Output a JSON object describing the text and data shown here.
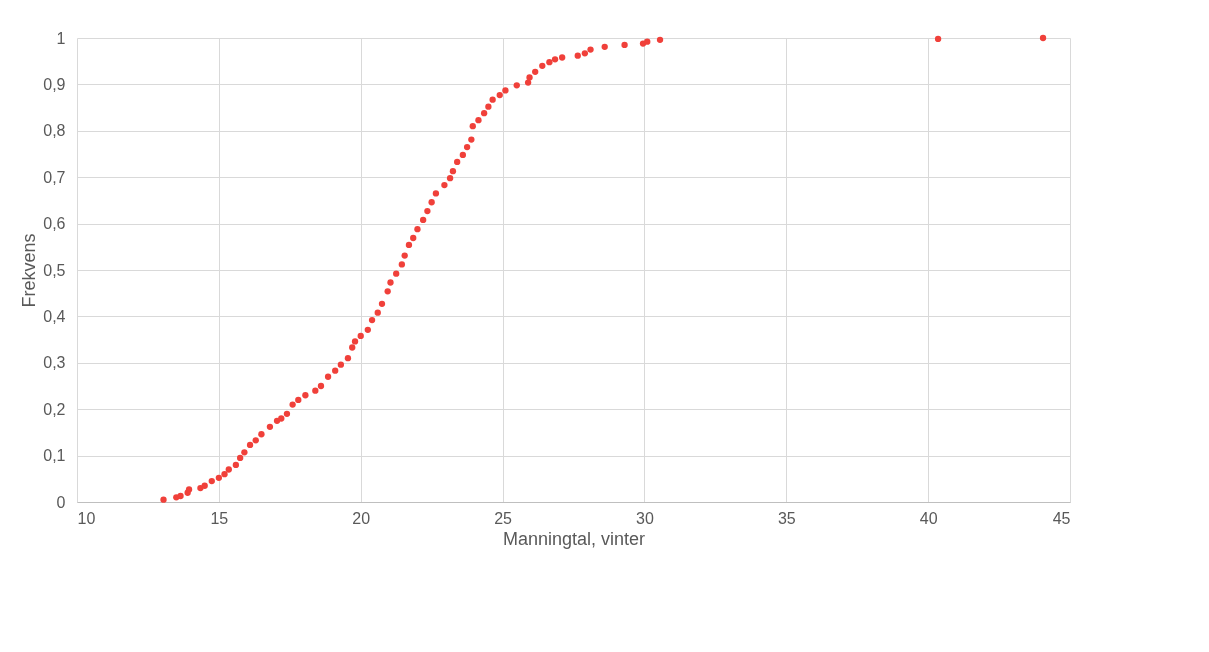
{
  "chart_data": {
    "type": "scatter",
    "xlabel": "Manningtal, vinter",
    "ylabel": "Frekvens",
    "x": [
      13.05,
      13.5,
      13.65,
      13.9,
      13.95,
      14.35,
      14.5,
      14.75,
      15.0,
      15.2,
      15.35,
      15.6,
      15.75,
      15.9,
      16.1,
      16.3,
      16.5,
      16.8,
      17.05,
      17.2,
      17.4,
      17.6,
      17.8,
      18.05,
      18.4,
      18.6,
      18.85,
      19.1,
      19.3,
      19.55,
      19.7,
      19.8,
      20.0,
      20.25,
      20.4,
      20.6,
      20.75,
      20.95,
      21.05,
      21.25,
      21.45,
      21.55,
      21.7,
      21.85,
      22.0,
      22.2,
      22.35,
      22.5,
      22.65,
      22.95,
      23.15,
      23.25,
      23.4,
      23.6,
      23.75,
      23.9,
      23.95,
      24.15,
      24.35,
      24.5,
      24.65,
      24.9,
      25.1,
      25.5,
      25.9,
      25.95,
      26.15,
      26.4,
      26.65,
      26.85,
      27.1,
      27.65,
      27.9,
      28.1,
      28.6,
      29.3,
      29.95,
      30.1,
      30.55,
      40.35,
      44.05
    ],
    "series": [
      {
        "color": "#f0403a",
        "values": [
          0.005,
          0.01,
          0.013,
          0.02,
          0.027,
          0.03,
          0.035,
          0.045,
          0.052,
          0.06,
          0.07,
          0.08,
          0.095,
          0.107,
          0.123,
          0.133,
          0.146,
          0.162,
          0.175,
          0.18,
          0.19,
          0.21,
          0.22,
          0.23,
          0.24,
          0.25,
          0.27,
          0.283,
          0.296,
          0.31,
          0.333,
          0.346,
          0.358,
          0.371,
          0.392,
          0.408,
          0.427,
          0.454,
          0.473,
          0.492,
          0.512,
          0.531,
          0.554,
          0.569,
          0.588,
          0.608,
          0.627,
          0.646,
          0.665,
          0.683,
          0.698,
          0.713,
          0.733,
          0.748,
          0.765,
          0.781,
          0.81,
          0.823,
          0.838,
          0.852,
          0.867,
          0.877,
          0.887,
          0.898,
          0.904,
          0.915,
          0.927,
          0.94,
          0.948,
          0.954,
          0.958,
          0.962,
          0.967,
          0.975,
          0.981,
          0.985,
          0.988,
          0.992,
          0.996,
          0.998,
          1.0
        ]
      }
    ],
    "xlim": [
      10,
      45
    ],
    "xticks": [
      10,
      15,
      20,
      25,
      30,
      35,
      40,
      45
    ],
    "ylim": [
      0,
      1
    ],
    "yticks": [
      0,
      {
        "value": 0.1,
        "label": "0,1"
      },
      {
        "value": 0.2,
        "label": "0,2"
      },
      {
        "value": 0.3,
        "label": "0,3"
      },
      {
        "value": 0.4,
        "label": "0,4"
      },
      {
        "value": 0.5,
        "label": "0,5"
      },
      {
        "value": 0.6,
        "label": "0,6"
      },
      {
        "value": 0.7,
        "label": "0,7"
      },
      {
        "value": 0.8,
        "label": "0,8"
      },
      {
        "value": 0.9,
        "label": "0,9"
      },
      1
    ],
    "grid": true,
    "marker": "circle"
  }
}
